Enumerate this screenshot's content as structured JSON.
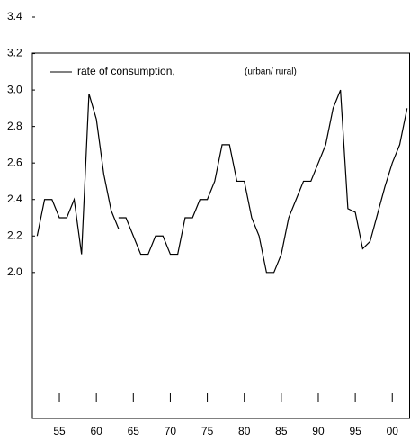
{
  "chart_data": {
    "type": "line",
    "series": [
      {
        "name": "rate of consumption,",
        "color": "#000000",
        "x": [
          1952,
          1953,
          1954,
          1955,
          1956,
          1957,
          1958,
          1959,
          1960,
          1961,
          1962,
          1963,
          1963,
          1963,
          1964,
          1965,
          1966,
          1967,
          1968,
          1969,
          1970,
          1971,
          1972,
          1973,
          1974,
          1975,
          1976,
          1977,
          1978,
          1979,
          1980,
          1981,
          1982,
          1983,
          1984,
          1985,
          1986,
          1987,
          1988,
          1989,
          1990,
          1991,
          1992,
          1993,
          1994,
          1995,
          1996,
          1997,
          1998,
          1999,
          2000,
          2001,
          2002
        ],
        "values": [
          2.2,
          2.4,
          2.4,
          2.3,
          2.3,
          2.4,
          2.1,
          2.98,
          2.84,
          2.54,
          2.34,
          2.24,
          null,
          2.3,
          2.3,
          2.2,
          2.1,
          2.1,
          2.2,
          2.2,
          2.1,
          2.1,
          2.3,
          2.3,
          2.4,
          2.4,
          2.5,
          2.7,
          2.7,
          2.5,
          2.5,
          2.3,
          2.2,
          2.0,
          2.0,
          2.1,
          2.3,
          2.4,
          2.5,
          2.5,
          2.6,
          2.7,
          2.9,
          3.0,
          2.35,
          2.33,
          2.13,
          2.17,
          2.32,
          2.47,
          2.6,
          2.7,
          2.9
        ]
      }
    ],
    "annotation": "(urban/ rural)",
    "xlim": [
      1951.35,
      2002.4
    ],
    "xticks": [
      {
        "value": 1955,
        "label": "55"
      },
      {
        "value": 1960,
        "label": "60"
      },
      {
        "value": 1965,
        "label": "65"
      },
      {
        "value": 1970,
        "label": "70"
      },
      {
        "value": 1975,
        "label": "75"
      },
      {
        "value": 1980,
        "label": "80"
      },
      {
        "value": 1985,
        "label": "85"
      },
      {
        "value": 1990,
        "label": "90"
      },
      {
        "value": 1995,
        "label": "95"
      },
      {
        "value": 2000,
        "label": "00"
      }
    ],
    "ylim": [
      1.2,
      3.4
    ],
    "yticks": [
      {
        "value": 2.0,
        "label": "2.0"
      },
      2.2,
      2.4,
      2.6,
      2.8,
      {
        "value": 3.0,
        "label": "3.0"
      },
      3.2,
      3.4
    ]
  }
}
